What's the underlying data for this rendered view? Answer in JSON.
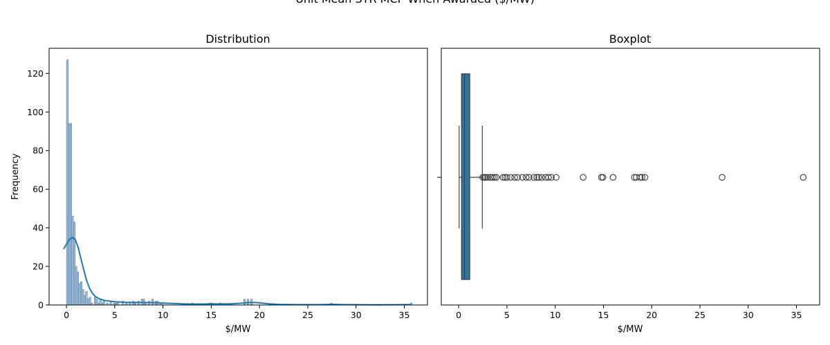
{
  "figure": {
    "suptitle": "Unit Mean STR MCP When Awarded ($/MW)"
  },
  "chart_data": [
    {
      "type": "bar",
      "title": "Distribution",
      "xlabel": "$/MW",
      "ylabel": "Frequency",
      "xlim": [
        -1.8,
        37.4
      ],
      "ylim": [
        0,
        133
      ],
      "xticks": [
        0,
        5,
        10,
        15,
        20,
        25,
        30,
        35
      ],
      "yticks": [
        0,
        20,
        40,
        60,
        80,
        100,
        120
      ],
      "bin_width": 0.18,
      "bins": [
        {
          "x": 0.0,
          "count": 127
        },
        {
          "x": 0.18,
          "count": 94
        },
        {
          "x": 0.36,
          "count": 94
        },
        {
          "x": 0.54,
          "count": 46
        },
        {
          "x": 0.72,
          "count": 43
        },
        {
          "x": 0.9,
          "count": 20
        },
        {
          "x": 1.08,
          "count": 17
        },
        {
          "x": 1.26,
          "count": 11
        },
        {
          "x": 1.44,
          "count": 12
        },
        {
          "x": 1.62,
          "count": 8
        },
        {
          "x": 1.8,
          "count": 5
        },
        {
          "x": 1.98,
          "count": 7
        },
        {
          "x": 2.16,
          "count": 3
        },
        {
          "x": 2.34,
          "count": 4
        },
        {
          "x": 2.52,
          "count": 1
        },
        {
          "x": 2.88,
          "count": 4
        },
        {
          "x": 3.06,
          "count": 3
        },
        {
          "x": 3.24,
          "count": 1
        },
        {
          "x": 3.42,
          "count": 3
        },
        {
          "x": 3.6,
          "count": 1
        },
        {
          "x": 3.78,
          "count": 2
        },
        {
          "x": 4.14,
          "count": 1
        },
        {
          "x": 4.5,
          "count": 2
        },
        {
          "x": 4.86,
          "count": 1
        },
        {
          "x": 5.04,
          "count": 1
        },
        {
          "x": 5.22,
          "count": 1
        },
        {
          "x": 5.76,
          "count": 2
        },
        {
          "x": 6.12,
          "count": 1
        },
        {
          "x": 6.48,
          "count": 1
        },
        {
          "x": 6.84,
          "count": 2
        },
        {
          "x": 7.02,
          "count": 1
        },
        {
          "x": 7.38,
          "count": 2
        },
        {
          "x": 7.74,
          "count": 3
        },
        {
          "x": 7.92,
          "count": 3
        },
        {
          "x": 8.1,
          "count": 1
        },
        {
          "x": 8.46,
          "count": 2
        },
        {
          "x": 8.82,
          "count": 3
        },
        {
          "x": 9.18,
          "count": 2
        },
        {
          "x": 9.36,
          "count": 2
        },
        {
          "x": 9.72,
          "count": 1
        },
        {
          "x": 12.96,
          "count": 1
        },
        {
          "x": 14.76,
          "count": 1
        },
        {
          "x": 14.94,
          "count": 1
        },
        {
          "x": 15.84,
          "count": 1
        },
        {
          "x": 18.36,
          "count": 3
        },
        {
          "x": 18.72,
          "count": 3
        },
        {
          "x": 19.08,
          "count": 3
        },
        {
          "x": 27.36,
          "count": 1
        },
        {
          "x": 35.64,
          "count": 1
        }
      ],
      "kde": {
        "x": [
          -0.3,
          0.0,
          0.3,
          0.6,
          0.9,
          1.2,
          1.5,
          1.8,
          2.1,
          2.4,
          2.7,
          3.0,
          3.5,
          4.0,
          5.0,
          6.0,
          7.0,
          8.0,
          9.0,
          10.0,
          11.0,
          12.0,
          13.0,
          14.0,
          15.0,
          16.0,
          17.0,
          18.0,
          19.0,
          19.5,
          20.0,
          21.0,
          22.0,
          24.0,
          26.0,
          27.5,
          29.0,
          32.0,
          35.0,
          35.7
        ],
        "y": [
          29,
          31.5,
          34,
          35,
          34,
          30,
          24,
          18,
          12.5,
          8.5,
          6,
          4.3,
          3,
          2.3,
          1.7,
          1.4,
          1.3,
          1.3,
          1.2,
          1.0,
          0.8,
          0.6,
          0.5,
          0.5,
          0.6,
          0.6,
          0.6,
          0.9,
          1.3,
          1.3,
          1.1,
          0.6,
          0.3,
          0.2,
          0.2,
          0.3,
          0.2,
          0.1,
          0.2,
          0.2
        ]
      }
    },
    {
      "type": "box",
      "title": "Boxplot",
      "xlabel": "$/MW",
      "xlim": [
        -1.8,
        37.4
      ],
      "xticks": [
        0,
        5,
        10,
        15,
        20,
        25,
        30,
        35
      ],
      "box": {
        "whisker_low": 0.05,
        "q1": 0.3,
        "median": 0.6,
        "q3": 1.15,
        "whisker_high": 2.45
      },
      "outliers": [
        2.5,
        2.65,
        2.8,
        3.0,
        3.3,
        3.5,
        3.7,
        3.9,
        4.6,
        4.8,
        5.0,
        5.4,
        5.8,
        6.1,
        6.6,
        7.0,
        7.3,
        7.8,
        8.1,
        8.3,
        8.6,
        9.0,
        9.3,
        9.6,
        10.1,
        12.9,
        14.8,
        14.95,
        16.0,
        18.2,
        18.4,
        18.8,
        19.0,
        19.3,
        27.3,
        35.7
      ]
    }
  ],
  "colors": {
    "bar_fill": "#9dbcd8",
    "bar_edge": "#5b7f9f",
    "kde_line": "#1f77b4",
    "box_fill": "#3274a1",
    "box_edge": "#404040",
    "axis": "#000000"
  }
}
